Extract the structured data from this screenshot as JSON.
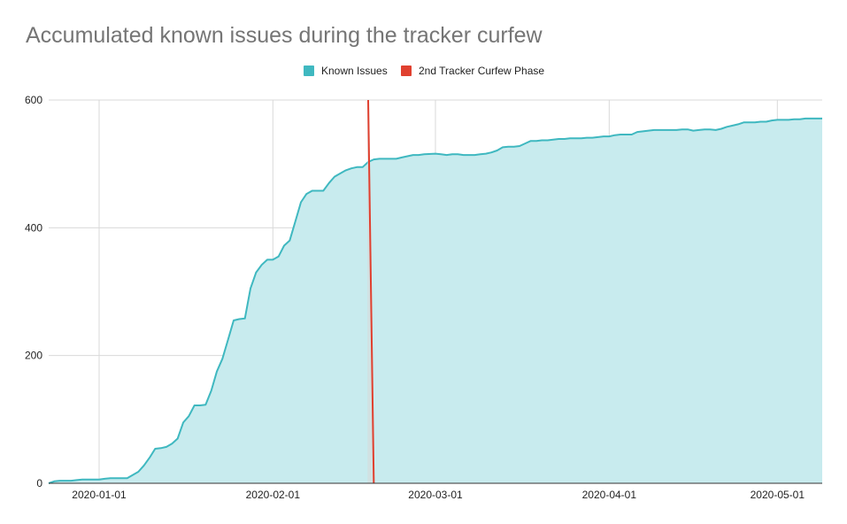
{
  "chart_data": {
    "type": "area",
    "title": "Accumulated known issues during the tracker curfew",
    "xlabel": "",
    "ylabel": "",
    "ylim": [
      0,
      600
    ],
    "yticks": [
      "0",
      "200",
      "400",
      "600"
    ],
    "xlim": [
      "2019-12-23",
      "2020-05-09"
    ],
    "xticks": [
      "2020-01-01",
      "2020-02-01",
      "2020-03-01",
      "2020-04-01",
      "2020-05-01"
    ],
    "grid": true,
    "legend_position": "top-center",
    "colors": {
      "area_fill": "#c8ebee",
      "area_line": "#3fb8c0",
      "curfew_line": "#e0402f",
      "curfew_band": "#d8d8d8",
      "grid": "#d9d9d9",
      "baseline": "#333333"
    },
    "series": [
      {
        "name": "Known Issues",
        "points": [
          [
            "2019-12-23",
            0
          ],
          [
            "2019-12-24",
            3
          ],
          [
            "2019-12-25",
            4
          ],
          [
            "2019-12-27",
            4
          ],
          [
            "2019-12-28",
            5
          ],
          [
            "2019-12-29",
            6
          ],
          [
            "2019-12-30",
            6
          ],
          [
            "2020-01-01",
            6
          ],
          [
            "2020-01-02",
            7
          ],
          [
            "2020-01-03",
            8
          ],
          [
            "2020-01-05",
            8
          ],
          [
            "2020-01-06",
            8
          ],
          [
            "2020-01-07",
            13
          ],
          [
            "2020-01-08",
            18
          ],
          [
            "2020-01-09",
            28
          ],
          [
            "2020-01-10",
            40
          ],
          [
            "2020-01-11",
            54
          ],
          [
            "2020-01-12",
            55
          ],
          [
            "2020-01-13",
            57
          ],
          [
            "2020-01-14",
            62
          ],
          [
            "2020-01-15",
            70
          ],
          [
            "2020-01-16",
            95
          ],
          [
            "2020-01-17",
            105
          ],
          [
            "2020-01-18",
            122
          ],
          [
            "2020-01-19",
            122
          ],
          [
            "2020-01-20",
            123
          ],
          [
            "2020-01-21",
            145
          ],
          [
            "2020-01-22",
            175
          ],
          [
            "2020-01-23",
            195
          ],
          [
            "2020-01-24",
            225
          ],
          [
            "2020-01-25",
            255
          ],
          [
            "2020-01-26",
            257
          ],
          [
            "2020-01-27",
            258
          ],
          [
            "2020-01-28",
            305
          ],
          [
            "2020-01-29",
            330
          ],
          [
            "2020-01-30",
            342
          ],
          [
            "2020-01-31",
            350
          ],
          [
            "2020-02-01",
            350
          ],
          [
            "2020-02-02",
            355
          ],
          [
            "2020-02-03",
            372
          ],
          [
            "2020-02-04",
            380
          ],
          [
            "2020-02-05",
            410
          ],
          [
            "2020-02-06",
            440
          ],
          [
            "2020-02-07",
            453
          ],
          [
            "2020-02-08",
            458
          ],
          [
            "2020-02-09",
            458
          ],
          [
            "2020-02-10",
            458
          ],
          [
            "2020-02-11",
            470
          ],
          [
            "2020-02-12",
            480
          ],
          [
            "2020-02-13",
            485
          ],
          [
            "2020-02-14",
            490
          ],
          [
            "2020-02-15",
            493
          ],
          [
            "2020-02-16",
            495
          ],
          [
            "2020-02-17",
            495
          ],
          [
            "2020-02-18",
            503
          ],
          [
            "2020-02-19",
            507
          ],
          [
            "2020-02-20",
            508
          ],
          [
            "2020-02-21",
            508
          ],
          [
            "2020-02-22",
            508
          ],
          [
            "2020-02-23",
            508
          ],
          [
            "2020-02-24",
            510
          ],
          [
            "2020-02-25",
            512
          ],
          [
            "2020-02-26",
            514
          ],
          [
            "2020-02-27",
            514
          ],
          [
            "2020-02-28",
            515
          ],
          [
            "2020-03-01",
            516
          ],
          [
            "2020-03-02",
            515
          ],
          [
            "2020-03-03",
            514
          ],
          [
            "2020-03-04",
            515
          ],
          [
            "2020-03-05",
            515
          ],
          [
            "2020-03-06",
            514
          ],
          [
            "2020-03-07",
            514
          ],
          [
            "2020-03-08",
            514
          ],
          [
            "2020-03-09",
            515
          ],
          [
            "2020-03-10",
            516
          ],
          [
            "2020-03-11",
            518
          ],
          [
            "2020-03-12",
            521
          ],
          [
            "2020-03-13",
            526
          ],
          [
            "2020-03-14",
            527
          ],
          [
            "2020-03-15",
            527
          ],
          [
            "2020-03-16",
            528
          ],
          [
            "2020-03-17",
            532
          ],
          [
            "2020-03-18",
            536
          ],
          [
            "2020-03-19",
            536
          ],
          [
            "2020-03-20",
            537
          ],
          [
            "2020-03-21",
            537
          ],
          [
            "2020-03-22",
            538
          ],
          [
            "2020-03-23",
            539
          ],
          [
            "2020-03-24",
            539
          ],
          [
            "2020-03-25",
            540
          ],
          [
            "2020-03-26",
            540
          ],
          [
            "2020-03-27",
            540
          ],
          [
            "2020-03-28",
            541
          ],
          [
            "2020-03-29",
            541
          ],
          [
            "2020-03-30",
            542
          ],
          [
            "2020-03-31",
            543
          ],
          [
            "2020-04-01",
            543
          ],
          [
            "2020-04-02",
            545
          ],
          [
            "2020-04-03",
            546
          ],
          [
            "2020-04-04",
            546
          ],
          [
            "2020-04-05",
            546
          ],
          [
            "2020-04-06",
            550
          ],
          [
            "2020-04-07",
            551
          ],
          [
            "2020-04-08",
            552
          ],
          [
            "2020-04-09",
            553
          ],
          [
            "2020-04-10",
            553
          ],
          [
            "2020-04-11",
            553
          ],
          [
            "2020-04-12",
            553
          ],
          [
            "2020-04-13",
            553
          ],
          [
            "2020-04-14",
            554
          ],
          [
            "2020-04-15",
            554
          ],
          [
            "2020-04-16",
            552
          ],
          [
            "2020-04-17",
            553
          ],
          [
            "2020-04-18",
            554
          ],
          [
            "2020-04-19",
            554
          ],
          [
            "2020-04-20",
            553
          ],
          [
            "2020-04-21",
            555
          ],
          [
            "2020-04-22",
            558
          ],
          [
            "2020-04-23",
            560
          ],
          [
            "2020-04-24",
            562
          ],
          [
            "2020-04-25",
            565
          ],
          [
            "2020-04-26",
            565
          ],
          [
            "2020-04-27",
            565
          ],
          [
            "2020-04-28",
            566
          ],
          [
            "2020-04-29",
            566
          ],
          [
            "2020-04-30",
            568
          ],
          [
            "2020-05-01",
            569
          ],
          [
            "2020-05-02",
            569
          ],
          [
            "2020-05-03",
            569
          ],
          [
            "2020-05-04",
            570
          ],
          [
            "2020-05-05",
            570
          ],
          [
            "2020-05-06",
            571
          ],
          [
            "2020-05-07",
            571
          ],
          [
            "2020-05-08",
            571
          ],
          [
            "2020-05-09",
            571
          ]
        ]
      },
      {
        "name": "2nd Tracker Curfew Phase",
        "points": [
          [
            "2020-02-18",
            600
          ],
          [
            "2020-02-19",
            0
          ]
        ]
      }
    ]
  }
}
